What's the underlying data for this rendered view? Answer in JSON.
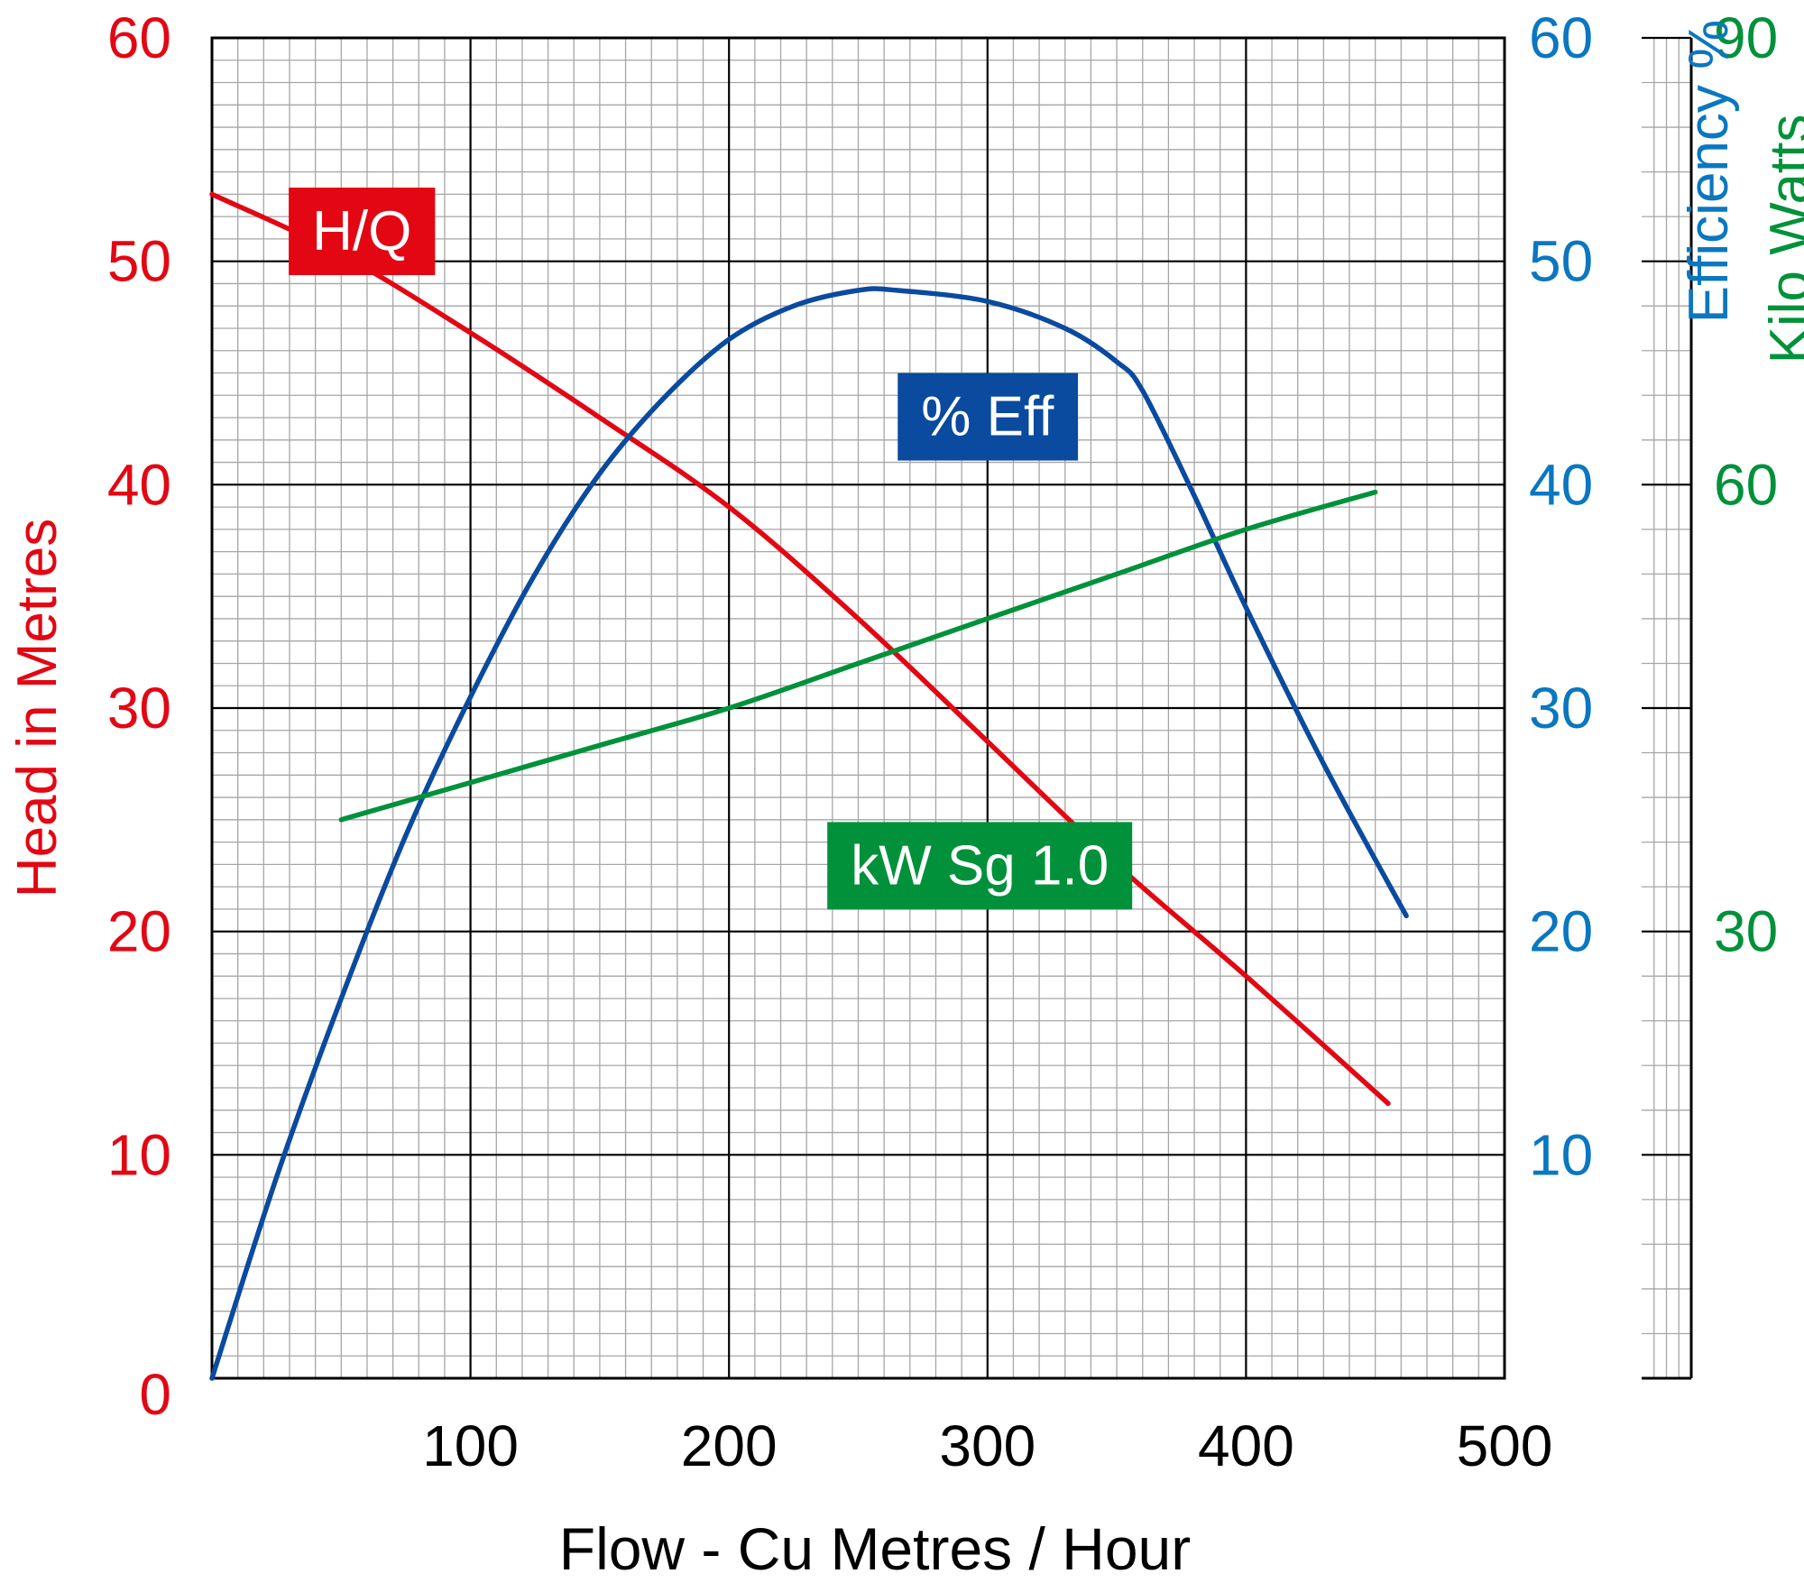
{
  "chart_data": {
    "type": "line",
    "xlabel": "Flow - Cu Metres / Hour",
    "xlim": [
      0,
      500
    ],
    "x_ticks": [
      100,
      200,
      300,
      400,
      500
    ],
    "left_axis": {
      "label": "Head in Metres",
      "color": "#e30613",
      "ylim": [
        0,
        60
      ],
      "ticks": [
        0,
        10,
        20,
        30,
        40,
        50,
        60
      ]
    },
    "right_axis": {
      "label": "Efficiency %",
      "color": "#0a77c0",
      "ylim": [
        0,
        60
      ],
      "ticks": [
        10,
        20,
        30,
        40,
        50,
        60
      ]
    },
    "kw_axis": {
      "label": "Kilo Watts",
      "color": "#00913a",
      "ylim": [
        0,
        90
      ],
      "ticks": [
        30,
        60,
        90
      ]
    },
    "series": [
      {
        "name": "H/Q",
        "label": "H/Q",
        "color": "#e30613",
        "axis": "left",
        "x": [
          0,
          50,
          100,
          150,
          200,
          250,
          300,
          350,
          400,
          455
        ],
        "y": [
          53,
          50.3,
          46.8,
          43,
          39,
          34,
          28.5,
          23,
          18,
          12.3
        ]
      },
      {
        "name": "% Eff",
        "label": "% Eff",
        "color": "#0a4a9f",
        "axis": "right",
        "x": [
          0,
          25,
          50,
          75,
          100,
          125,
          150,
          175,
          200,
          225,
          250,
          265,
          300,
          330,
          350,
          360,
          380,
          400,
          430,
          462
        ],
        "y": [
          0,
          9,
          17,
          24.3,
          30.5,
          36,
          40.5,
          43.9,
          46.5,
          48,
          48.7,
          48.7,
          48.2,
          47,
          45.5,
          44.2,
          39.5,
          34.5,
          27.5,
          20.7
        ]
      },
      {
        "name": "kW Sg 1.0",
        "label": "kW Sg 1.0",
        "color": "#00913a",
        "axis": "kw",
        "x": [
          50,
          100,
          150,
          200,
          250,
          300,
          350,
          400,
          450
        ],
        "y": [
          37.5,
          40,
          42.5,
          45,
          48,
          51,
          54,
          57,
          59.5
        ]
      }
    ]
  }
}
